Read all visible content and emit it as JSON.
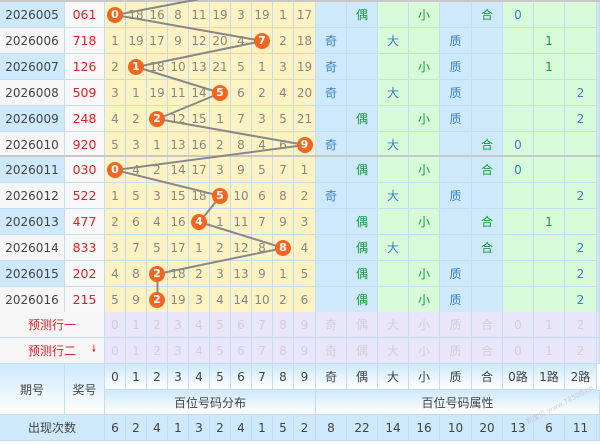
{
  "rows": [
    {
      "period": "2026005",
      "award": "061",
      "hundred": 0,
      "missing": [
        "0",
        "18",
        "16",
        "8",
        "11",
        "19",
        "3",
        "19",
        "1",
        "17"
      ],
      "attrs": [
        "",
        "偶",
        "",
        "小",
        "",
        "合",
        "0",
        "",
        ""
      ]
    },
    {
      "period": "2026006",
      "award": "718",
      "hundred": 7,
      "missing": [
        "1",
        "19",
        "17",
        "9",
        "12",
        "20",
        "4",
        "7",
        "2",
        "18"
      ],
      "attrs": [
        "奇",
        "",
        "大",
        "",
        "质",
        "",
        "",
        "1",
        ""
      ]
    },
    {
      "period": "2026007",
      "award": "126",
      "hundred": 1,
      "missing": [
        "2",
        "1",
        "18",
        "10",
        "13",
        "21",
        "5",
        "1",
        "3",
        "19"
      ],
      "attrs": [
        "奇",
        "",
        "",
        "小",
        "质",
        "",
        "",
        "1",
        ""
      ]
    },
    {
      "period": "2026008",
      "award": "509",
      "hundred": 5,
      "missing": [
        "3",
        "1",
        "19",
        "11",
        "14",
        "5",
        "6",
        "2",
        "4",
        "20"
      ],
      "attrs": [
        "奇",
        "",
        "大",
        "",
        "质",
        "",
        "",
        "",
        "2"
      ]
    },
    {
      "period": "2026009",
      "award": "248",
      "hundred": 2,
      "missing": [
        "4",
        "2",
        "2",
        "12",
        "15",
        "1",
        "7",
        "3",
        "5",
        "21"
      ],
      "attrs": [
        "",
        "偶",
        "",
        "小",
        "质",
        "",
        "",
        "",
        "2"
      ]
    },
    {
      "period": "2026010",
      "award": "920",
      "hundred": 9,
      "missing": [
        "5",
        "3",
        "1",
        "13",
        "16",
        "2",
        "8",
        "4",
        "6",
        "9"
      ],
      "attrs": [
        "奇",
        "",
        "大",
        "",
        "",
        "合",
        "0",
        "",
        ""
      ]
    },
    {
      "period": "2026011",
      "award": "030",
      "hundred": 0,
      "missing": [
        "0",
        "4",
        "2",
        "14",
        "17",
        "3",
        "9",
        "5",
        "7",
        "1"
      ],
      "attrs": [
        "",
        "偶",
        "",
        "小",
        "",
        "合",
        "0",
        "",
        ""
      ]
    },
    {
      "period": "2026012",
      "award": "522",
      "hundred": 5,
      "missing": [
        "1",
        "5",
        "3",
        "15",
        "18",
        "5",
        "10",
        "6",
        "8",
        "2"
      ],
      "attrs": [
        "奇",
        "",
        "大",
        "",
        "质",
        "",
        "",
        "",
        "2"
      ]
    },
    {
      "period": "2026013",
      "award": "477",
      "hundred": 4,
      "missing": [
        "2",
        "6",
        "4",
        "16",
        "4",
        "1",
        "11",
        "7",
        "9",
        "3"
      ],
      "attrs": [
        "",
        "偶",
        "",
        "小",
        "",
        "合",
        "",
        "1",
        ""
      ]
    },
    {
      "period": "2026014",
      "award": "833",
      "hundred": 8,
      "missing": [
        "3",
        "7",
        "5",
        "17",
        "1",
        "2",
        "12",
        "8",
        "8",
        "4"
      ],
      "attrs": [
        "",
        "偶",
        "大",
        "",
        "",
        "合",
        "",
        "",
        "2"
      ]
    },
    {
      "period": "2026015",
      "award": "202",
      "hundred": 2,
      "missing": [
        "4",
        "8",
        "2",
        "18",
        "2",
        "3",
        "13",
        "9",
        "1",
        "5"
      ],
      "attrs": [
        "",
        "偶",
        "",
        "小",
        "质",
        "",
        "",
        "",
        "2"
      ]
    },
    {
      "period": "2026016",
      "award": "215",
      "hundred": 2,
      "missing": [
        "5",
        "9",
        "2",
        "19",
        "3",
        "4",
        "14",
        "10",
        "2",
        "6"
      ],
      "attrs": [
        "",
        "偶",
        "",
        "小",
        "质",
        "",
        "",
        "",
        "2"
      ]
    }
  ],
  "predict": [
    {
      "label": "预测行一"
    },
    {
      "label": "预测行二",
      "icon": "arrow-down-icon"
    }
  ],
  "predict_digits": [
    "0",
    "1",
    "2",
    "3",
    "4",
    "5",
    "6",
    "7",
    "8",
    "9"
  ],
  "predict_attrs": [
    "奇",
    "偶",
    "大",
    "小",
    "质",
    "合",
    "0",
    "1",
    "2"
  ],
  "header": {
    "period": "期号",
    "award": "奖号",
    "digits": [
      "0",
      "1",
      "2",
      "3",
      "4",
      "5",
      "6",
      "7",
      "8",
      "9"
    ],
    "attrs": [
      "奇",
      "偶",
      "大",
      "小",
      "质",
      "合",
      "0路",
      "1路",
      "2路"
    ],
    "dist_label": "百位号码分布",
    "attr_label": "百位号码属性"
  },
  "counts": {
    "label": "出现次数",
    "digits": [
      "6",
      "2",
      "4",
      "1",
      "3",
      "2",
      "4",
      "1",
      "5",
      "2"
    ],
    "attrs": [
      "8",
      "22",
      "14",
      "16",
      "10",
      "20",
      "13",
      "6",
      "11"
    ]
  },
  "watermark": "彩宝贝 www.78500.cn",
  "colors": {
    "ball": "#f26522",
    "award": "#e0202a",
    "digit_bg": "#fdf3c2",
    "attr_blue": "#cde9fb",
    "attr_green": "#d7fbd8"
  }
}
